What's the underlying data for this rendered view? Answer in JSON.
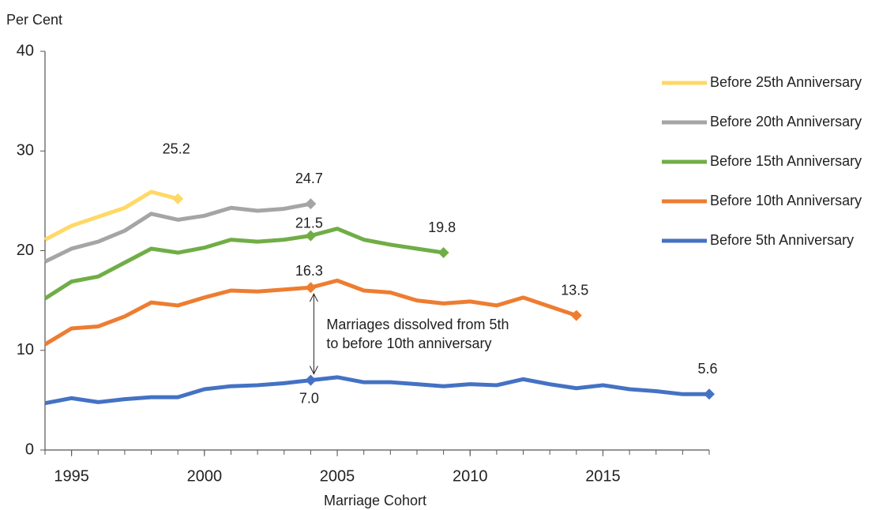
{
  "chart_data": {
    "type": "line",
    "y_label": "Per Cent",
    "x_label": "Marriage Cohort",
    "annotation": [
      "Marriages dissolved from 5th",
      "to before 10th anniversary"
    ],
    "x": [
      1994,
      1995,
      1996,
      1997,
      1998,
      1999,
      2000,
      2001,
      2002,
      2003,
      2004,
      2005,
      2006,
      2007,
      2008,
      2009,
      2010,
      2011,
      2012,
      2013,
      2014,
      2015,
      2016,
      2017,
      2018,
      2019
    ],
    "xlim": [
      1994,
      2019
    ],
    "xticks": [
      1995,
      2000,
      2005,
      2010,
      2015
    ],
    "ylim": [
      0,
      40
    ],
    "yticks": [
      0,
      10,
      20,
      30,
      40
    ],
    "legend": "right",
    "series": [
      {
        "name": "Before 25th Anniversary",
        "color": "#ffd966",
        "values": [
          21.1,
          22.5,
          23.4,
          24.3,
          25.9,
          25.2,
          null,
          null,
          null,
          null,
          null,
          null,
          null,
          null,
          null,
          null,
          null,
          null,
          null,
          null,
          null,
          null,
          null,
          null,
          null,
          null
        ],
        "value_labels": [
          null,
          null,
          null,
          null,
          null,
          "25.2",
          null,
          null,
          null,
          null,
          null,
          null,
          null,
          null,
          null,
          null,
          null,
          null,
          null,
          null,
          null,
          null,
          null,
          null,
          null,
          null
        ]
      },
      {
        "name": "Before 20th Anniversary",
        "color": "#a5a5a5",
        "values": [
          18.9,
          20.2,
          20.9,
          22.0,
          23.7,
          23.1,
          23.5,
          24.3,
          24.0,
          24.2,
          24.7,
          null,
          null,
          null,
          null,
          null,
          null,
          null,
          null,
          null,
          null,
          null,
          null,
          null,
          null,
          null
        ],
        "value_labels": [
          null,
          null,
          null,
          null,
          null,
          null,
          null,
          null,
          null,
          null,
          "24.7",
          null,
          null,
          null,
          null,
          null,
          null,
          null,
          null,
          null,
          null,
          null,
          null,
          null,
          null,
          null
        ]
      },
      {
        "name": "Before 15th Anniversary",
        "color": "#70ad47",
        "values": [
          15.2,
          16.9,
          17.4,
          18.8,
          20.2,
          19.8,
          20.3,
          21.1,
          20.9,
          21.1,
          21.5,
          22.2,
          21.1,
          20.6,
          20.2,
          19.8,
          null,
          null,
          null,
          null,
          null,
          null,
          null,
          null,
          null,
          null
        ],
        "value_labels": [
          null,
          null,
          null,
          null,
          null,
          null,
          null,
          null,
          null,
          null,
          "21.5",
          null,
          null,
          null,
          null,
          "19.8",
          null,
          null,
          null,
          null,
          null,
          null,
          null,
          null,
          null,
          null
        ]
      },
      {
        "name": "Before 10th Anniversary",
        "color": "#ed7d31",
        "values": [
          10.6,
          12.2,
          12.4,
          13.4,
          14.8,
          14.5,
          15.3,
          16.0,
          15.9,
          16.1,
          16.3,
          17.0,
          16.0,
          15.8,
          15.0,
          14.7,
          14.9,
          14.5,
          15.3,
          14.4,
          13.5,
          null,
          null,
          null,
          null,
          null
        ],
        "value_labels": [
          null,
          null,
          null,
          null,
          null,
          null,
          null,
          null,
          null,
          null,
          "16.3",
          null,
          null,
          null,
          null,
          null,
          null,
          null,
          null,
          null,
          "13.5",
          null,
          null,
          null,
          null,
          null
        ]
      },
      {
        "name": "Before 5th Anniversary",
        "color": "#4472c4",
        "values": [
          4.7,
          5.2,
          4.8,
          5.1,
          5.3,
          5.3,
          6.1,
          6.4,
          6.5,
          6.7,
          7.0,
          7.3,
          6.8,
          6.8,
          6.6,
          6.4,
          6.6,
          6.5,
          7.1,
          6.6,
          6.2,
          6.5,
          6.1,
          5.9,
          5.6,
          5.6
        ],
        "value_labels": [
          null,
          null,
          null,
          null,
          null,
          null,
          null,
          null,
          null,
          null,
          "7.0",
          null,
          null,
          null,
          null,
          null,
          null,
          null,
          null,
          null,
          null,
          null,
          null,
          null,
          null,
          "5.6"
        ]
      }
    ]
  }
}
